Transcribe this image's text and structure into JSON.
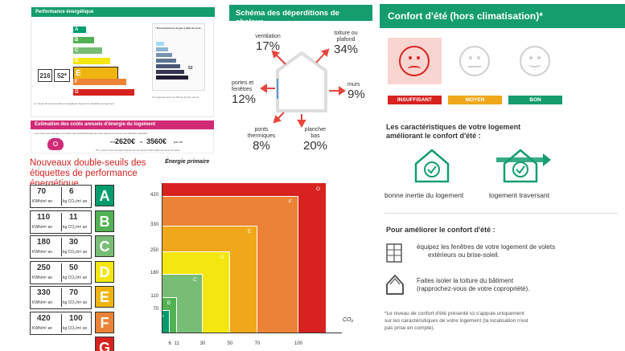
{
  "dpe": {
    "title": "Performance énergétique",
    "letters": [
      "A",
      "B",
      "C",
      "D",
      "E",
      "F",
      "G"
    ],
    "colors": [
      "#009c6d",
      "#52b153",
      "#78bd76",
      "#f4e70f",
      "#f0b40f",
      "#eb8235",
      "#d7221f"
    ],
    "energy_value": "216",
    "energy_unit": "kWh/m²/an",
    "ghg_value": "52*",
    "ghg_unit": "kg CO₂/m²/an",
    "current_letter": "E",
    "ges_value": "52",
    "ges_letter": "E",
    "ges_title": "* Dont émissions de gaz à effet de serre",
    "small_text_1": "Ce logement émet 11 324 kg de CO₂ par an",
    "small_text_2": "Le niveau de consommation énergétique dépend de l'isolation du logement"
  },
  "cost": {
    "title": "Estimation des coûts annuels d'énergie du logement",
    "intro": "Les coûts sont estimés en fonction des caractéristiques de votre logement et pour une utilisation standard",
    "low": "2620€",
    "high": "3560€",
    "between": "et",
    "prefix": "entre",
    "suffix": "par an",
    "footnote": "Prix moyens des énergies indexés au 1er janvier 2021 (abonnements compris)"
  },
  "heatloss": {
    "title": "Schéma des déperditions de chaleur",
    "items": [
      {
        "label_1": "ventilation",
        "label_2": "",
        "value": "17%"
      },
      {
        "label_1": "toiture ou",
        "label_2": "plafond",
        "value": "34%"
      },
      {
        "label_1": "portes et",
        "label_2": "fenêtres",
        "value": "12%"
      },
      {
        "label_1": "murs",
        "label_2": "",
        "value": "9%"
      },
      {
        "label_1": "ponts",
        "label_2": "thermiques",
        "value": "8%"
      },
      {
        "label_1": "plancher",
        "label_2": "bas",
        "value": "20%"
      }
    ]
  },
  "thresholds": {
    "title_1": "Nouveaux double-seuils des",
    "title_2": "étiquettes de performance",
    "title_3": "énergétique",
    "unit_energy": "KWh/m² an",
    "unit_co2": "kg CO₂/m² an",
    "rows": [
      {
        "energy": "70",
        "co2": "6",
        "letter": "A",
        "color": "#009c6d"
      },
      {
        "energy": "110",
        "co2": "11",
        "letter": "B",
        "color": "#52b153"
      },
      {
        "energy": "180",
        "co2": "30",
        "letter": "C",
        "color": "#78bd76"
      },
      {
        "energy": "250",
        "co2": "50",
        "letter": "D",
        "color": "#f4e70f"
      },
      {
        "energy": "330",
        "co2": "70",
        "letter": "E",
        "color": "#f0b40f"
      },
      {
        "energy": "420",
        "co2": "100",
        "letter": "F",
        "color": "#eb8235"
      },
      {
        "energy": "",
        "co2": "",
        "letter": "G",
        "color": "#d7221f"
      }
    ]
  },
  "chart_data": {
    "type": "nested-threshold-areas",
    "xlabel": "CO₂",
    "ylabel": "Énergie primaire",
    "x_ticks": [
      6,
      11,
      30,
      50,
      70,
      100
    ],
    "y_ticks": [
      70,
      110,
      180,
      250,
      330,
      420
    ],
    "zones": [
      {
        "letter": "G",
        "color": "#d7221f"
      },
      {
        "letter": "F",
        "color": "#eb8235"
      },
      {
        "letter": "E",
        "color": "#f0a71a"
      },
      {
        "letter": "D",
        "color": "#f4e70f"
      },
      {
        "letter": "C",
        "color": "#78bd76"
      },
      {
        "letter": "B",
        "color": "#52b153"
      },
      {
        "letter": "A",
        "color": "#009c6d"
      }
    ]
  },
  "comfort": {
    "title": "Confort d'été (hors climatisation)*",
    "levels": [
      {
        "label": "INSUFFISANT",
        "color": "#d7221f",
        "face": "sad"
      },
      {
        "label": "MOYEN",
        "color": "#f0a71a",
        "face": "neutral"
      },
      {
        "label": "BON",
        "color": "#159d6d",
        "face": "happy"
      }
    ],
    "features_title_1": "Les caractéristiques de votre logement",
    "features_title_2": "améliorant le confort d'été :",
    "feature_1": "bonne inertie du logement",
    "feature_2": "logement traversant",
    "improve_title": "Pour améliorer le confort d'été :",
    "tip_1_line_1": "équipez les fenêtres de votre logement de volets",
    "tip_1_line_2": "extérieurs ou brise-soleil.",
    "tip_2_line_1": "Faites isoler la toiture du bâtiment",
    "tip_2_line_2": "(rapprochez-vous de votre copropriété).",
    "note_1": "*Le niveau de confort d'été présenté ici s'appuie uniquement",
    "note_2": "sur les caractéristiques de votre logement (la localisation n'est",
    "note_3": "pas prise en compte)."
  }
}
